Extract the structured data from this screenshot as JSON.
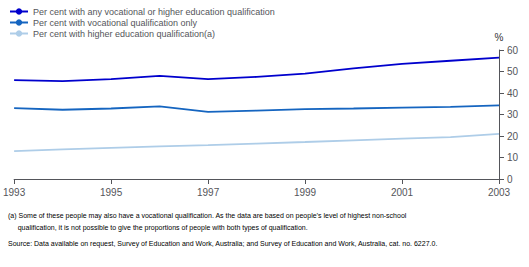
{
  "chart_data": {
    "type": "line",
    "x": [
      1993,
      1994,
      1995,
      1996,
      1997,
      1998,
      1999,
      2000,
      2001,
      2002,
      2003
    ],
    "series": [
      {
        "name": "Per cent with any vocational or higher education qualification",
        "color": "#0000CD",
        "values": [
          46.0,
          45.5,
          46.5,
          48.0,
          46.5,
          47.5,
          49.0,
          51.5,
          53.5,
          55.0,
          56.5
        ]
      },
      {
        "name": "Per cent with vocational qualification only",
        "color": "#1565C0",
        "values": [
          33.0,
          32.2,
          32.8,
          33.8,
          31.2,
          31.8,
          32.5,
          32.8,
          33.2,
          33.5,
          34.2
        ]
      },
      {
        "name": "Per cent with higher education qualification(a)",
        "color": "#AECDE8",
        "values": [
          13.0,
          13.8,
          14.5,
          15.2,
          15.8,
          16.5,
          17.2,
          18.0,
          18.8,
          19.5,
          21.0
        ]
      }
    ],
    "xlim": [
      1993,
      2003
    ],
    "xticks": [
      1993,
      1995,
      1997,
      1999,
      2001,
      2003
    ],
    "ylim": [
      0,
      60
    ],
    "yticks": [
      0,
      10,
      20,
      30,
      40,
      50,
      60
    ],
    "ylabel": "%",
    "grid": false,
    "legend": "top-left",
    "annotations": [
      "(a) Some of these people may also have a vocational qualification. As the data are based on people’s level of highest non-school",
      "     qualification, it is not possible to give the proportions of people with both types of qualification.",
      "Source: Data available on request, Survey of Education and Work, Australia; and Survey of Education and Work, Australia, cat. no. 6227.0."
    ]
  }
}
